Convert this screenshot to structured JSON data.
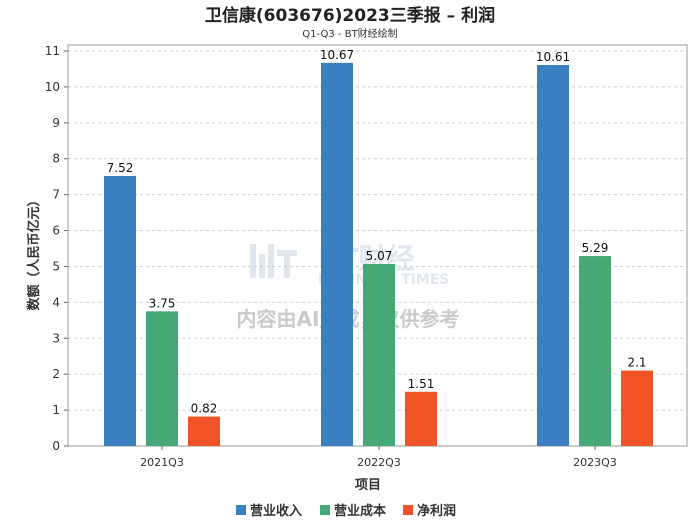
{
  "chart_data": {
    "type": "bar",
    "title": "卫信康(603676)2023三季报 – 利润",
    "subtitle": "Q1-Q3 - BT财经绘制",
    "xlabel": "项目",
    "ylabel": "数额（人民币亿元）",
    "categories": [
      "2021Q3",
      "2022Q3",
      "2023Q3"
    ],
    "ylim": [
      0,
      11
    ],
    "yticks": [
      0,
      1,
      2,
      3,
      4,
      5,
      6,
      7,
      8,
      9,
      10,
      11
    ],
    "grid": true,
    "legend_position": "bottom",
    "series": [
      {
        "name": "营业收入",
        "color": "#3a80c0",
        "values": [
          7.52,
          10.67,
          10.61
        ],
        "labels": [
          "7.52",
          "10.67",
          "10.61"
        ]
      },
      {
        "name": "营业成本",
        "color": "#45a977",
        "values": [
          3.75,
          5.07,
          5.29
        ],
        "labels": [
          "3.75",
          "5.07",
          "5.29"
        ]
      },
      {
        "name": "净利润",
        "color": "#f05325",
        "values": [
          0.82,
          1.51,
          2.1
        ],
        "labels": [
          "0.82",
          "1.51",
          "2.1"
        ]
      }
    ]
  },
  "watermark": {
    "logo_text": "BT财经",
    "logo_sub": "BUSINESS TIMES",
    "notice": "内容由AI生成，仅供参考"
  }
}
